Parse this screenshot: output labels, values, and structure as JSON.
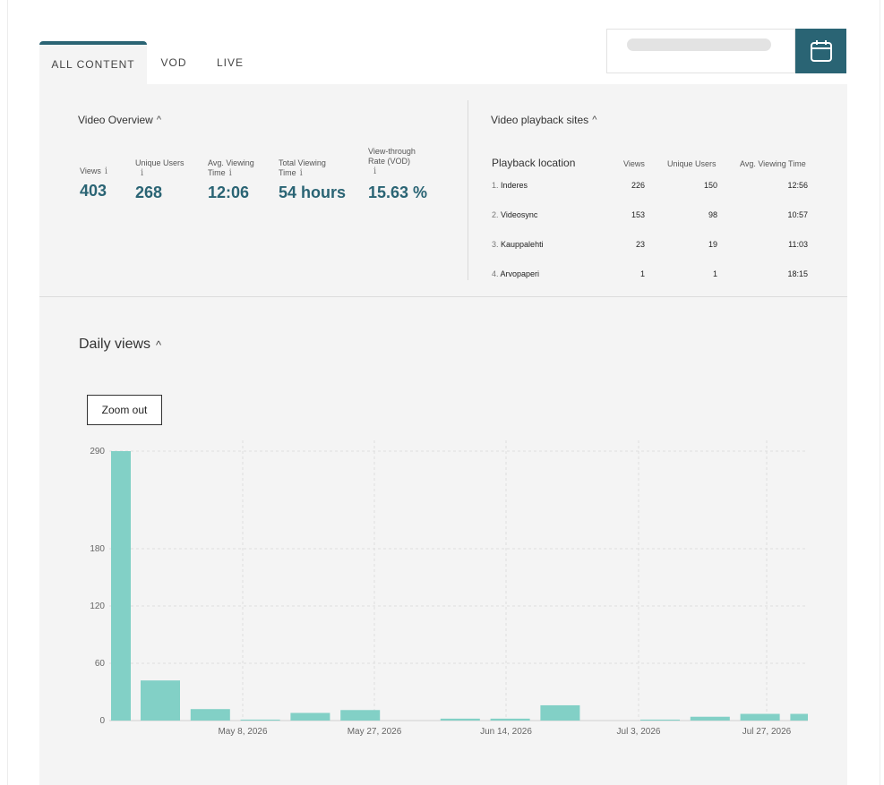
{
  "tabs": [
    {
      "label": "ALL CONTENT",
      "active": true
    },
    {
      "label": "VOD",
      "active": false
    },
    {
      "label": "LIVE",
      "active": false
    }
  ],
  "date_picker": {
    "icon": "calendar-icon",
    "accent": "#2a6474"
  },
  "overview": {
    "title": "Video Overview",
    "metrics": [
      {
        "label": "Views",
        "value": "403"
      },
      {
        "label": "Unique Users",
        "value": "268"
      },
      {
        "label": "Avg. Viewing Time",
        "value": "12:06"
      },
      {
        "label": "Total Viewing Time",
        "value": "54 hours"
      },
      {
        "label": "View-through Rate (VOD)",
        "value": "15.63 %"
      }
    ]
  },
  "playback": {
    "title": "Video playback sites",
    "headers": [
      "Playback location",
      "Views",
      "Unique Users",
      "Avg. Viewing Time"
    ],
    "rows": [
      {
        "idx": "1.",
        "location": "Inderes",
        "views": "226",
        "users": "150",
        "avg": "12:56"
      },
      {
        "idx": "2.",
        "location": "Videosync",
        "views": "153",
        "users": "98",
        "avg": "10:57"
      },
      {
        "idx": "3.",
        "location": "Kauppalehti",
        "views": "23",
        "users": "19",
        "avg": "11:03"
      },
      {
        "idx": "4.",
        "location": "Arvopaperi",
        "views": "1",
        "users": "1",
        "avg": "18:15"
      }
    ]
  },
  "daily": {
    "title": "Daily views",
    "zoom_label": "Zoom out"
  },
  "chart_data": {
    "type": "bar",
    "title": "Daily views",
    "bar_color": "#82d0c6",
    "y_ticks": [
      0,
      60,
      120,
      180,
      290
    ],
    "x_ticks": [
      "May 8, 2026",
      "May 27, 2026",
      "Jun 14, 2026",
      "Jul 3, 2026",
      "Jul 27, 2026"
    ],
    "values": [
      290,
      42,
      12,
      1,
      8,
      11,
      0,
      2,
      2,
      16,
      0,
      1,
      4,
      7,
      7
    ],
    "grid": true
  }
}
